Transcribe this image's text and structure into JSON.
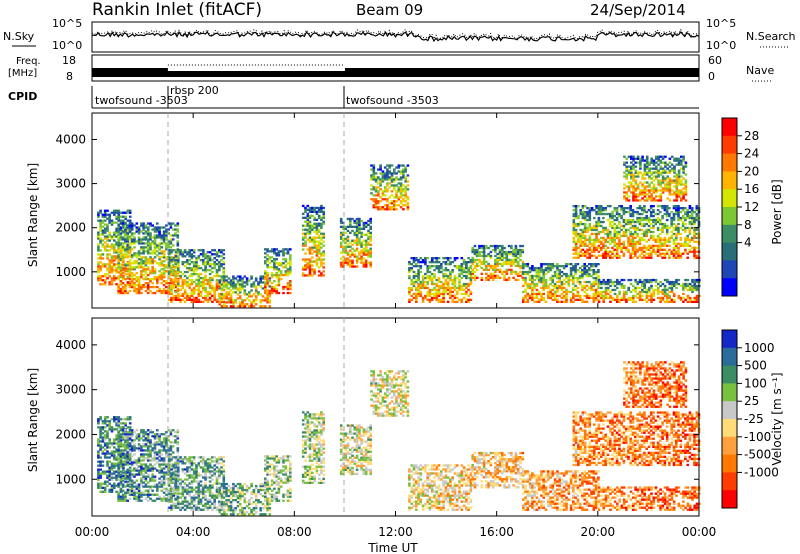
{
  "header": {
    "station": "Rankin Inlet (fitACF)",
    "beam": "Beam 09",
    "date": "24/Sep/2014"
  },
  "top_panels": {
    "nsky_label": "N.Sky",
    "nsearch_label": "N.Search",
    "nsky_ticks": [
      "10^5",
      "10^0"
    ],
    "nsearch_ticks": [
      "10^5",
      "10^0"
    ],
    "freq_label": "Freq.",
    "freq_unit": "[MHz]",
    "freq_ticks": [
      "18",
      "8"
    ],
    "nave_ticks": [
      "60",
      "0"
    ],
    "nave_label": "Nave",
    "cpid_label": "CPID",
    "cpid_segments": [
      {
        "label": "twofsound -3503",
        "start": "00:00",
        "end": "03:00"
      },
      {
        "label": "rbsp 200",
        "start": "03:00",
        "end": "10:00"
      },
      {
        "label": "twofsound -3503",
        "start": "10:00",
        "end": "24:00"
      }
    ]
  },
  "power_scale": {
    "title": "Power [dB]",
    "ticks": [
      "28",
      "24",
      "20",
      "16",
      "12",
      "8",
      "4"
    ],
    "colors": [
      "#ff0000",
      "#ff3c00",
      "#ff7800",
      "#ffb400",
      "#d2e600",
      "#7dc832",
      "#3c8c64",
      "#2a6e78",
      "#1e46b4",
      "#0000ff"
    ]
  },
  "velocity_scale": {
    "title": "Velocity [m s⁻¹]",
    "ticks": [
      "1000",
      "500",
      "100",
      "25",
      "-25",
      "-100",
      "-500",
      "-1000"
    ],
    "colors": [
      "#1428c8",
      "#2b6c9a",
      "#3c8c64",
      "#7ac040",
      "#c8c8c8",
      "#ffdc78",
      "#ffa03c",
      "#ff7800",
      "#ff3c00",
      "#ff0000"
    ]
  },
  "chart_data": [
    {
      "type": "heatmap",
      "title": "",
      "ylabel": "Slant Range [km]",
      "xlabel": "Time UT",
      "x_ticks": [
        "00:00",
        "04:00",
        "08:00",
        "12:00",
        "16:00",
        "20:00",
        "00:00"
      ],
      "y_ticks": [
        "1000",
        "2000",
        "3000",
        "4000"
      ],
      "xlim": [
        0,
        24
      ],
      "ylim": [
        180,
        4600
      ],
      "quantity": "Power [dB]"
    },
    {
      "type": "heatmap",
      "title": "",
      "ylabel": "Slant Range [km]",
      "xlabel": "Time UT",
      "x_ticks": [
        "00:00",
        "04:00",
        "08:00",
        "12:00",
        "16:00",
        "20:00",
        "00:00"
      ],
      "y_ticks": [
        "1000",
        "2000",
        "3000",
        "4000"
      ],
      "xlim": [
        0,
        24
      ],
      "ylim": [
        180,
        4600
      ],
      "quantity": "Velocity [m s⁻¹]"
    }
  ]
}
